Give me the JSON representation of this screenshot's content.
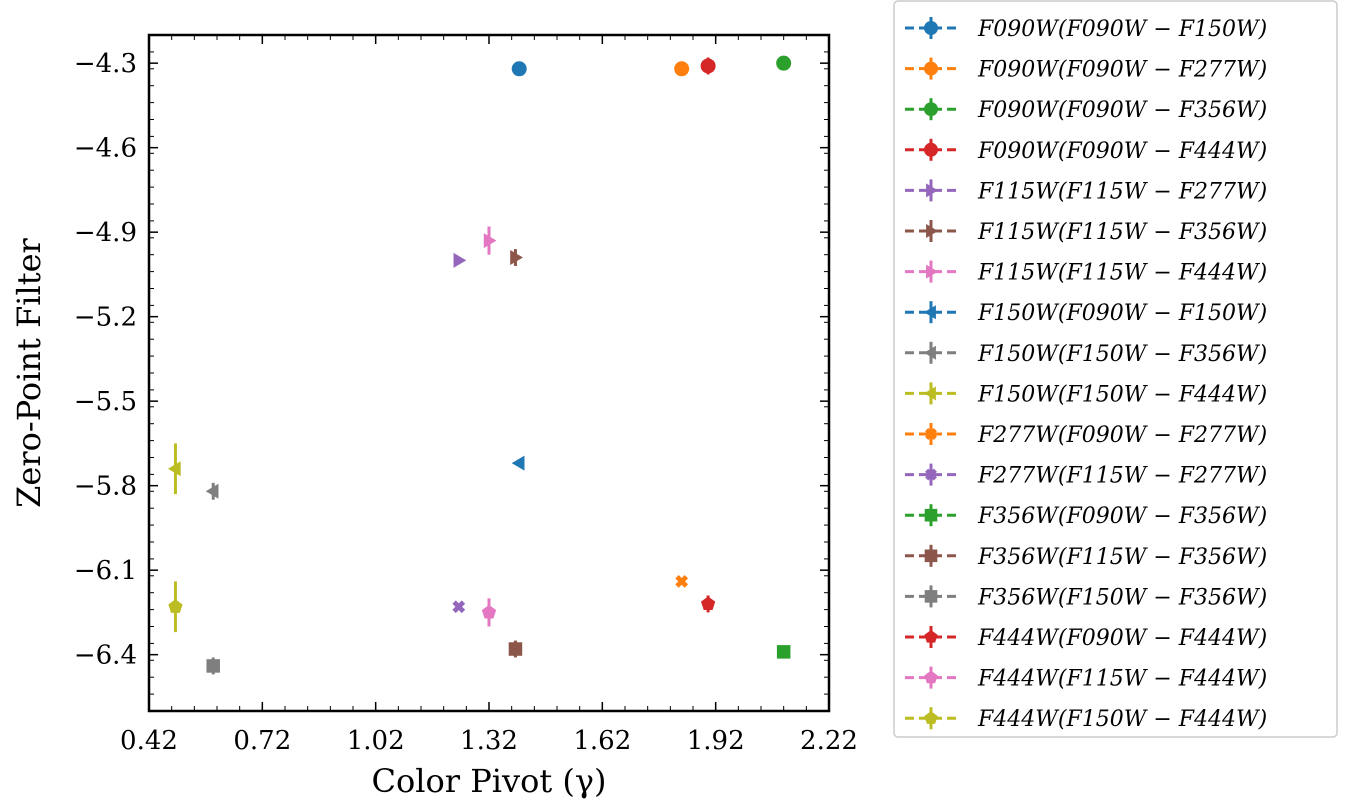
{
  "chart_data": {
    "type": "scatter",
    "xlabel": "Color Pivot (γ)",
    "ylabel": "Zero-Point Filter",
    "xlim": [
      0.42,
      2.22
    ],
    "ylim": [
      -4.2,
      -6.6
    ],
    "y_inverted": true,
    "xticks": [
      0.42,
      0.72,
      1.02,
      1.32,
      1.62,
      1.92,
      2.22
    ],
    "xtick_labels": [
      "0.42",
      "0.72",
      "1.02",
      "1.32",
      "1.62",
      "1.92",
      "2.22"
    ],
    "yticks": [
      -6.4,
      -6.1,
      -5.8,
      -5.5,
      -5.2,
      -4.9,
      -4.6,
      -4.3
    ],
    "ytick_labels": [
      "−6.4",
      "−6.1",
      "−5.8",
      "−5.5",
      "−5.2",
      "−4.9",
      "−4.6",
      "−4.3"
    ],
    "grid": false,
    "legend_position": "outside-right",
    "series": [
      {
        "name": "F090W(F090W − F150W)",
        "color": "#1f77b4",
        "marker": "circle",
        "x": 1.4,
        "y": -4.32,
        "yerr": 0.01
      },
      {
        "name": "F090W(F090W − F277W)",
        "color": "#ff7f0e",
        "marker": "circle",
        "x": 1.83,
        "y": -4.32,
        "yerr": 0.02
      },
      {
        "name": "F090W(F090W − F356W)",
        "color": "#2ca02c",
        "marker": "circle",
        "x": 2.1,
        "y": -4.3,
        "yerr": 0.01
      },
      {
        "name": "F090W(F090W − F444W)",
        "color": "#d62728",
        "marker": "circle",
        "x": 1.9,
        "y": -4.31,
        "yerr": 0.03
      },
      {
        "name": "F115W(F115W − F277W)",
        "color": "#9467bd",
        "marker": "tri-right",
        "x": 1.24,
        "y": -5.0,
        "yerr": 0.01
      },
      {
        "name": "F115W(F115W − F356W)",
        "color": "#8c564b",
        "marker": "tri-right",
        "x": 1.39,
        "y": -4.99,
        "yerr": 0.03
      },
      {
        "name": "F115W(F115W − F444W)",
        "color": "#e377c2",
        "marker": "tri-right",
        "x": 1.32,
        "y": -4.93,
        "yerr": 0.05
      },
      {
        "name": "F150W(F090W − F150W)",
        "color": "#1f77b4",
        "marker": "tri-left",
        "x": 1.4,
        "y": -5.72,
        "yerr": 0.01
      },
      {
        "name": "F150W(F150W − F356W)",
        "color": "#7f7f7f",
        "marker": "tri-left",
        "x": 0.59,
        "y": -5.82,
        "yerr": 0.03
      },
      {
        "name": "F150W(F150W − F444W)",
        "color": "#bcbd22",
        "marker": "tri-left",
        "x": 0.49,
        "y": -5.74,
        "yerr": 0.09
      },
      {
        "name": "F277W(F090W − F277W)",
        "color": "#ff7f0e",
        "marker": "x",
        "x": 1.83,
        "y": -6.14,
        "yerr": 0.01
      },
      {
        "name": "F277W(F115W − F277W)",
        "color": "#9467bd",
        "marker": "x",
        "x": 1.24,
        "y": -6.23,
        "yerr": 0.01
      },
      {
        "name": "F356W(F090W − F356W)",
        "color": "#2ca02c",
        "marker": "square",
        "x": 2.1,
        "y": -6.39,
        "yerr": 0.01
      },
      {
        "name": "F356W(F115W − F356W)",
        "color": "#8c564b",
        "marker": "square",
        "x": 1.39,
        "y": -6.38,
        "yerr": 0.03
      },
      {
        "name": "F356W(F150W − F356W)",
        "color": "#7f7f7f",
        "marker": "square",
        "x": 0.59,
        "y": -6.44,
        "yerr": 0.03
      },
      {
        "name": "F444W(F090W − F444W)",
        "color": "#d62728",
        "marker": "pentagon",
        "x": 1.9,
        "y": -6.22,
        "yerr": 0.03
      },
      {
        "name": "F444W(F115W − F444W)",
        "color": "#e377c2",
        "marker": "pentagon",
        "x": 1.32,
        "y": -6.25,
        "yerr": 0.05
      },
      {
        "name": "F444W(F150W − F444W)",
        "color": "#bcbd22",
        "marker": "pentagon",
        "x": 0.49,
        "y": -6.23,
        "yerr": 0.09
      }
    ]
  }
}
